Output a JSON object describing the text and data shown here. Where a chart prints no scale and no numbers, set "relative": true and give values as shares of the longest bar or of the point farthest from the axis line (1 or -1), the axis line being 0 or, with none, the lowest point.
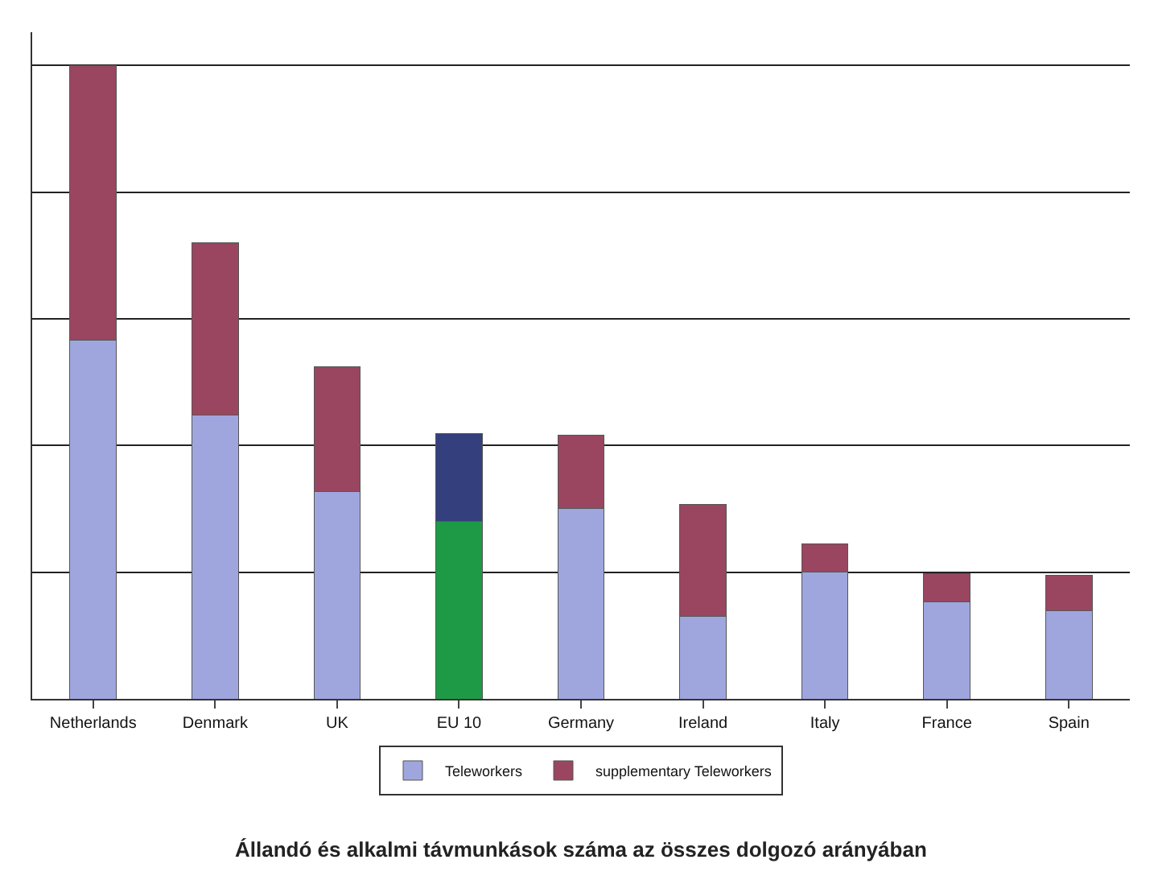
{
  "chart_data": {
    "type": "bar",
    "title": "Állandó és alkalmi távmunkások száma az összes dolgozó arányában",
    "relative": true,
    "stacked": true,
    "grid": true,
    "legend": "bottom",
    "categories": [
      "Netherlands",
      "Denmark",
      "UK",
      "EU 10",
      "Germany",
      "Ireland",
      "Italy",
      "France",
      "Spain"
    ],
    "series": [
      {
        "name": "Teleworkers",
        "color": "#9fa6de",
        "colors": [
          "#9fa6de",
          "#9fa6de",
          "#9fa6de",
          "#1e9a46",
          "#9fa6de",
          "#9fa6de",
          "#9fa6de",
          "#9fa6de",
          "#9fa6de"
        ],
        "values": [
          0.566,
          0.448,
          0.327,
          0.28,
          0.301,
          0.13,
          0.2,
          0.153,
          0.139
        ]
      },
      {
        "name": "supplementary Teleworkers",
        "color": "#9a4660",
        "colors": [
          "#9a4660",
          "#9a4660",
          "#9a4660",
          "#343f7e",
          "#9a4660",
          "#9a4660",
          "#9a4660",
          "#9a4660",
          "#9a4660"
        ],
        "values": [
          0.434,
          0.272,
          0.198,
          0.139,
          0.115,
          0.177,
          0.045,
          0.045,
          0.056
        ]
      }
    ]
  }
}
